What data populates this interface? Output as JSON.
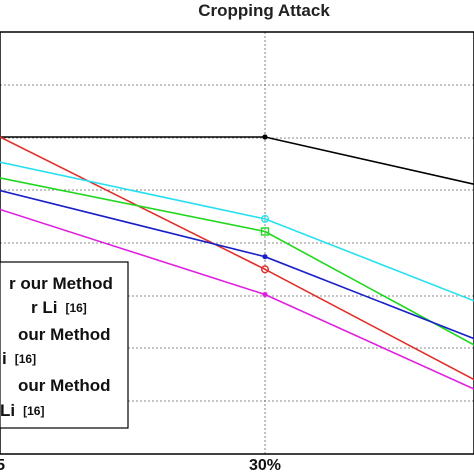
{
  "chart_data": {
    "type": "line",
    "title": "Cropping Attack",
    "xlabel": "",
    "ylabel": "",
    "x": [
      "",
      "30%",
      ""
    ],
    "xtick_labels": [
      "5",
      "30%"
    ],
    "grid": true,
    "legend_placement": "bottom-left",
    "series": [
      {
        "name": "",
        "color": "#000000",
        "values": [
          1.0,
          1.0,
          0.85
        ]
      },
      {
        "name": "",
        "color": "#e0302a",
        "values": [
          1.0,
          0.58,
          0.23
        ]
      },
      {
        "name": "",
        "color": "#27e0ef",
        "values": [
          0.92,
          0.74,
          0.48
        ]
      },
      {
        "name": "",
        "color": "#1fd81f",
        "values": [
          0.87,
          0.7,
          0.34
        ]
      },
      {
        "name": "",
        "color": "#1a20c8",
        "values": [
          0.83,
          0.62,
          0.36
        ]
      },
      {
        "name": "",
        "color": "#e020e0",
        "values": [
          0.77,
          0.5,
          0.2
        ]
      }
    ],
    "legend": [
      {
        "text": "r our Method",
        "ref": ""
      },
      {
        "text": "r Li",
        "ref": "[16]"
      },
      {
        "text": "our Method",
        "ref": ""
      },
      {
        "text": "i",
        "ref": "[16]"
      },
      {
        "text": "our Method",
        "ref": ""
      },
      {
        "text": "Li",
        "ref": "[16]"
      }
    ]
  }
}
